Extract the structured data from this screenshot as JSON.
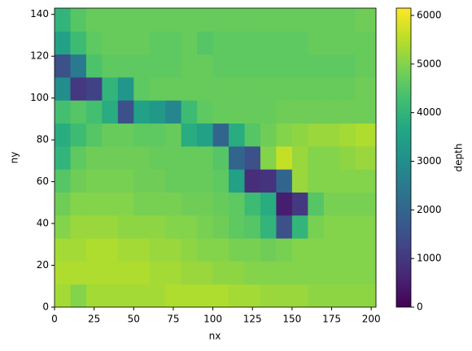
{
  "chart_data": {
    "type": "heatmap",
    "x_label": "nx",
    "y_label": "ny",
    "colorbar_label": "depth",
    "cmap": "viridis",
    "xlim": [
      0,
      203
    ],
    "ylim": [
      0,
      143
    ],
    "clim": [
      0,
      6150
    ],
    "xticks": [
      0,
      25,
      50,
      75,
      100,
      125,
      150,
      175,
      200
    ],
    "yticks": [
      0,
      20,
      40,
      60,
      80,
      100,
      120,
      140
    ],
    "cticks": [
      0,
      1000,
      2000,
      3000,
      4000,
      5000,
      6000
    ],
    "x_edges": [
      0,
      10,
      20,
      30,
      40,
      50,
      60,
      70,
      80,
      90,
      100,
      110,
      120,
      130,
      140,
      150,
      160,
      170,
      180,
      190,
      203
    ],
    "y_edges": [
      0,
      11,
      22,
      33,
      44,
      55,
      66,
      77,
      88,
      99,
      110,
      121,
      132,
      143
    ],
    "z": [
      [
        5300,
        5000,
        5300,
        5300,
        5300,
        5300,
        5300,
        5400,
        5400,
        5400,
        5400,
        5300,
        5300,
        5200,
        5200,
        5200,
        5100,
        5100,
        5100,
        5100
      ],
      [
        5400,
        5400,
        5400,
        5400,
        5400,
        5400,
        5300,
        5300,
        5200,
        5200,
        5100,
        5100,
        5000,
        5000,
        5000,
        5000,
        5000,
        5000,
        5000,
        5000
      ],
      [
        5300,
        5300,
        5400,
        5400,
        5300,
        5300,
        5200,
        5200,
        5100,
        5000,
        5000,
        4900,
        4900,
        4800,
        4900,
        5000,
        5000,
        5000,
        5000,
        5000
      ],
      [
        5000,
        5200,
        5200,
        5200,
        5100,
        5100,
        5100,
        5000,
        5000,
        4900,
        4800,
        4600,
        4500,
        4000,
        1500,
        4000,
        4900,
        5000,
        5000,
        5000
      ],
      [
        4800,
        5000,
        5000,
        5000,
        5000,
        4900,
        4900,
        4900,
        4800,
        4800,
        4700,
        4600,
        4200,
        3800,
        500,
        1000,
        4500,
        4900,
        4900,
        4900
      ],
      [
        4500,
        4800,
        4900,
        4900,
        4900,
        4800,
        4800,
        4700,
        4700,
        4700,
        4600,
        3500,
        800,
        900,
        2000,
        5200,
        5000,
        5000,
        5000,
        5000
      ],
      [
        4000,
        4600,
        4800,
        4800,
        4800,
        4800,
        4700,
        4700,
        4700,
        4700,
        4500,
        2000,
        1500,
        5000,
        5600,
        5200,
        5000,
        5000,
        5100,
        5200
      ],
      [
        3800,
        4200,
        4500,
        4700,
        4700,
        4600,
        4600,
        4700,
        3800,
        3500,
        2000,
        3800,
        4500,
        4800,
        5000,
        5100,
        5200,
        5200,
        5300,
        5400
      ],
      [
        4300,
        4500,
        4300,
        3800,
        1500,
        3500,
        3300,
        2800,
        4200,
        4600,
        4700,
        4700,
        4700,
        4700,
        4800,
        4800,
        4800,
        4800,
        4800,
        4800
      ],
      [
        3000,
        1000,
        1200,
        4000,
        3200,
        4600,
        4700,
        4700,
        4700,
        4700,
        4700,
        4700,
        4700,
        4700,
        4700,
        4700,
        4700,
        4700,
        4700,
        4800
      ],
      [
        1500,
        2500,
        4400,
        4600,
        4600,
        4600,
        4600,
        4600,
        4700,
        4700,
        4600,
        4600,
        4600,
        4600,
        4600,
        4600,
        4600,
        4600,
        4600,
        4700
      ],
      [
        3500,
        4200,
        4600,
        4700,
        4700,
        4700,
        4600,
        4600,
        4700,
        4500,
        4600,
        4600,
        4600,
        4600,
        4600,
        4600,
        4700,
        4700,
        4700,
        4700
      ],
      [
        4000,
        4500,
        4700,
        4700,
        4700,
        4700,
        4700,
        4700,
        4700,
        4700,
        4700,
        4700,
        4700,
        4700,
        4700,
        4700,
        4700,
        4700,
        4700,
        4800
      ]
    ]
  }
}
